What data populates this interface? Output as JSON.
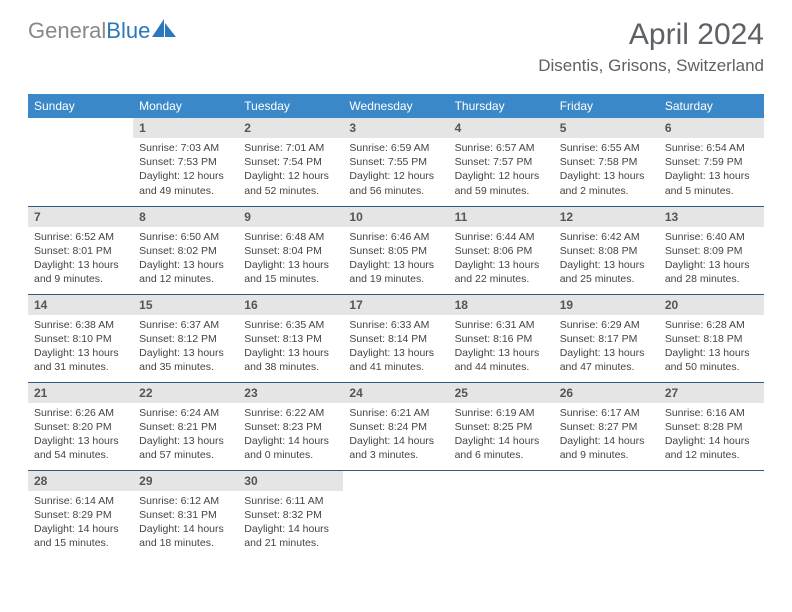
{
  "logo": {
    "text_gray": "General",
    "text_blue": "Blue"
  },
  "title": "April 2024",
  "location": "Disentis, Grisons, Switzerland",
  "colors": {
    "header_bg": "#3b88c8",
    "header_text": "#ffffff",
    "daynum_bg": "#e5e5e5",
    "border": "#2a5b8a",
    "body_text": "#444444",
    "title_text": "#5d6066"
  },
  "weekdays": [
    "Sunday",
    "Monday",
    "Tuesday",
    "Wednesday",
    "Thursday",
    "Friday",
    "Saturday"
  ],
  "weeks": [
    [
      null,
      {
        "n": "1",
        "sunrise": "7:03 AM",
        "sunset": "7:53 PM",
        "daylight": "12 hours and 49 minutes."
      },
      {
        "n": "2",
        "sunrise": "7:01 AM",
        "sunset": "7:54 PM",
        "daylight": "12 hours and 52 minutes."
      },
      {
        "n": "3",
        "sunrise": "6:59 AM",
        "sunset": "7:55 PM",
        "daylight": "12 hours and 56 minutes."
      },
      {
        "n": "4",
        "sunrise": "6:57 AM",
        "sunset": "7:57 PM",
        "daylight": "12 hours and 59 minutes."
      },
      {
        "n": "5",
        "sunrise": "6:55 AM",
        "sunset": "7:58 PM",
        "daylight": "13 hours and 2 minutes."
      },
      {
        "n": "6",
        "sunrise": "6:54 AM",
        "sunset": "7:59 PM",
        "daylight": "13 hours and 5 minutes."
      }
    ],
    [
      {
        "n": "7",
        "sunrise": "6:52 AM",
        "sunset": "8:01 PM",
        "daylight": "13 hours and 9 minutes."
      },
      {
        "n": "8",
        "sunrise": "6:50 AM",
        "sunset": "8:02 PM",
        "daylight": "13 hours and 12 minutes."
      },
      {
        "n": "9",
        "sunrise": "6:48 AM",
        "sunset": "8:04 PM",
        "daylight": "13 hours and 15 minutes."
      },
      {
        "n": "10",
        "sunrise": "6:46 AM",
        "sunset": "8:05 PM",
        "daylight": "13 hours and 19 minutes."
      },
      {
        "n": "11",
        "sunrise": "6:44 AM",
        "sunset": "8:06 PM",
        "daylight": "13 hours and 22 minutes."
      },
      {
        "n": "12",
        "sunrise": "6:42 AM",
        "sunset": "8:08 PM",
        "daylight": "13 hours and 25 minutes."
      },
      {
        "n": "13",
        "sunrise": "6:40 AM",
        "sunset": "8:09 PM",
        "daylight": "13 hours and 28 minutes."
      }
    ],
    [
      {
        "n": "14",
        "sunrise": "6:38 AM",
        "sunset": "8:10 PM",
        "daylight": "13 hours and 31 minutes."
      },
      {
        "n": "15",
        "sunrise": "6:37 AM",
        "sunset": "8:12 PM",
        "daylight": "13 hours and 35 minutes."
      },
      {
        "n": "16",
        "sunrise": "6:35 AM",
        "sunset": "8:13 PM",
        "daylight": "13 hours and 38 minutes."
      },
      {
        "n": "17",
        "sunrise": "6:33 AM",
        "sunset": "8:14 PM",
        "daylight": "13 hours and 41 minutes."
      },
      {
        "n": "18",
        "sunrise": "6:31 AM",
        "sunset": "8:16 PM",
        "daylight": "13 hours and 44 minutes."
      },
      {
        "n": "19",
        "sunrise": "6:29 AM",
        "sunset": "8:17 PM",
        "daylight": "13 hours and 47 minutes."
      },
      {
        "n": "20",
        "sunrise": "6:28 AM",
        "sunset": "8:18 PM",
        "daylight": "13 hours and 50 minutes."
      }
    ],
    [
      {
        "n": "21",
        "sunrise": "6:26 AM",
        "sunset": "8:20 PM",
        "daylight": "13 hours and 54 minutes."
      },
      {
        "n": "22",
        "sunrise": "6:24 AM",
        "sunset": "8:21 PM",
        "daylight": "13 hours and 57 minutes."
      },
      {
        "n": "23",
        "sunrise": "6:22 AM",
        "sunset": "8:23 PM",
        "daylight": "14 hours and 0 minutes."
      },
      {
        "n": "24",
        "sunrise": "6:21 AM",
        "sunset": "8:24 PM",
        "daylight": "14 hours and 3 minutes."
      },
      {
        "n": "25",
        "sunrise": "6:19 AM",
        "sunset": "8:25 PM",
        "daylight": "14 hours and 6 minutes."
      },
      {
        "n": "26",
        "sunrise": "6:17 AM",
        "sunset": "8:27 PM",
        "daylight": "14 hours and 9 minutes."
      },
      {
        "n": "27",
        "sunrise": "6:16 AM",
        "sunset": "8:28 PM",
        "daylight": "14 hours and 12 minutes."
      }
    ],
    [
      {
        "n": "28",
        "sunrise": "6:14 AM",
        "sunset": "8:29 PM",
        "daylight": "14 hours and 15 minutes."
      },
      {
        "n": "29",
        "sunrise": "6:12 AM",
        "sunset": "8:31 PM",
        "daylight": "14 hours and 18 minutes."
      },
      {
        "n": "30",
        "sunrise": "6:11 AM",
        "sunset": "8:32 PM",
        "daylight": "14 hours and 21 minutes."
      },
      null,
      null,
      null,
      null
    ]
  ],
  "labels": {
    "sunrise": "Sunrise: ",
    "sunset": "Sunset: ",
    "daylight": "Daylight: "
  }
}
